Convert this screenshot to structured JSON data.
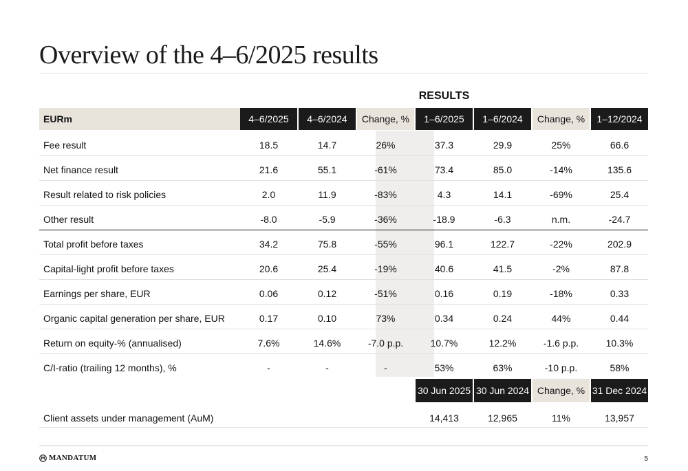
{
  "title": "Overview of the 4–6/2025 results",
  "section_label": "RESULTS",
  "columns": [
    "EURm",
    "4–6/2025",
    "4–6/2024",
    "Change, %",
    "1–6/2025",
    "1–6/2024",
    "Change, %",
    "1–12/2024"
  ],
  "rows": [
    {
      "label": "Fee result",
      "values": [
        "18.5",
        "14.7",
        "26%",
        "37.3",
        "29.9",
        "25%",
        "66.6"
      ]
    },
    {
      "label": "Net finance result",
      "values": [
        "21.6",
        "55.1",
        "-61%",
        "73.4",
        "85.0",
        "-14%",
        "135.6"
      ]
    },
    {
      "label": "Result related to risk policies",
      "values": [
        "2.0",
        "11.9",
        "-83%",
        "4.3",
        "14.1",
        "-69%",
        "25.4"
      ]
    },
    {
      "label": "Other result",
      "values": [
        "-8.0",
        "-5.9",
        "-36%",
        "-18.9",
        "-6.3",
        "n.m.",
        "-24.7"
      ]
    },
    {
      "label": "Total profit before taxes",
      "values": [
        "34.2",
        "75.8",
        "-55%",
        "96.1",
        "122.7",
        "-22%",
        "202.9"
      ]
    },
    {
      "label": "Capital-light profit before taxes",
      "values": [
        "20.6",
        "25.4",
        "-19%",
        "40.6",
        "41.5",
        "-2%",
        "87.8"
      ]
    },
    {
      "label": "Earnings per share, EUR",
      "values": [
        "0.06",
        "0.12",
        "-51%",
        "0.16",
        "0.19",
        "-18%",
        "0.33"
      ]
    },
    {
      "label": "Organic capital generation per share, EUR",
      "values": [
        "0.17",
        "0.10",
        "73%",
        "0.34",
        "0.24",
        "44%",
        "0.44"
      ]
    },
    {
      "label": "Return on equity-% (annualised)",
      "values": [
        "7.6%",
        "14.6%",
        "-7.0 p.p.",
        "10.7%",
        "12.2%",
        "-1.6 p.p.",
        "10.3%"
      ]
    },
    {
      "label": "C/I-ratio (trailing 12 months), %",
      "values": [
        "-",
        "-",
        "-",
        "53%",
        "63%",
        "-10 p.p.",
        "58%"
      ]
    }
  ],
  "aum": {
    "columns": [
      "30 Jun 2025",
      "30 Jun 2024",
      "Change, %",
      "31 Dec 2024"
    ],
    "label": "Client assets under management (AuM)",
    "values": [
      "14,413",
      "12,965",
      "11%",
      "13,957"
    ]
  },
  "footer": {
    "logo_text": "MANDATUM",
    "page_number": "5"
  },
  "colors": {
    "dark_header": "#1b1b1b",
    "beige_header": "#e8e4dc",
    "shaded_column": "#efeeec"
  }
}
